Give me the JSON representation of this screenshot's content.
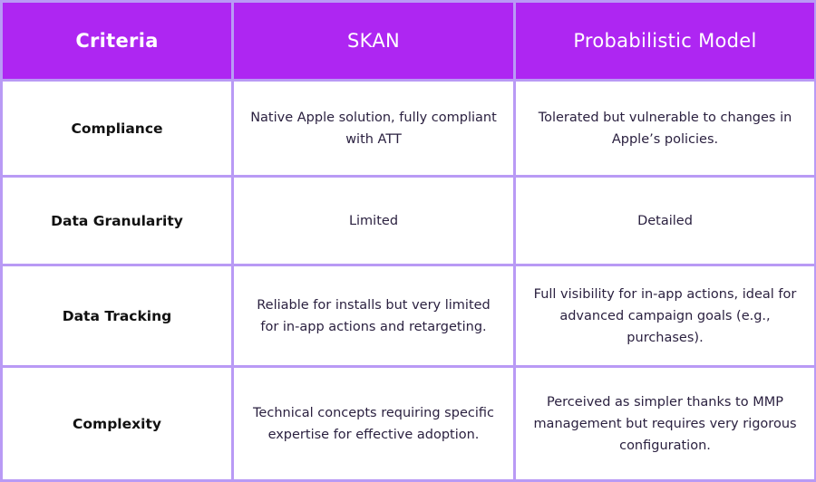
{
  "table": {
    "headers": [
      "Criteria",
      "SKAN",
      "Probabilistic Model"
    ],
    "rows": [
      {
        "criterion": "Compliance",
        "skan": "Native Apple solution, fully compliant with ATT",
        "probabilistic": "Tolerated but vulnerable to changes in Apple’s policies."
      },
      {
        "criterion": "Data Granularity",
        "skan": "Limited",
        "probabilistic": "Detailed"
      },
      {
        "criterion": "Data Tracking",
        "skan": "Reliable for installs but very limited for in-app actions and retargeting.",
        "probabilistic": "Full visibility for in-app actions, ideal for advanced campaign goals (e.g., purchases)."
      },
      {
        "criterion": "Complexity",
        "skan": "Technical concepts requiring specific expertise for effective adoption.",
        "probabilistic": "Perceived as simpler thanks to MMP management but requires very rigorous configuration."
      }
    ]
  },
  "colors": {
    "header_bg": "#ae26f2",
    "grid_lines": "#b99af5",
    "header_text": "#ffffff",
    "label_text": "#111111",
    "value_text": "#2b2140"
  }
}
